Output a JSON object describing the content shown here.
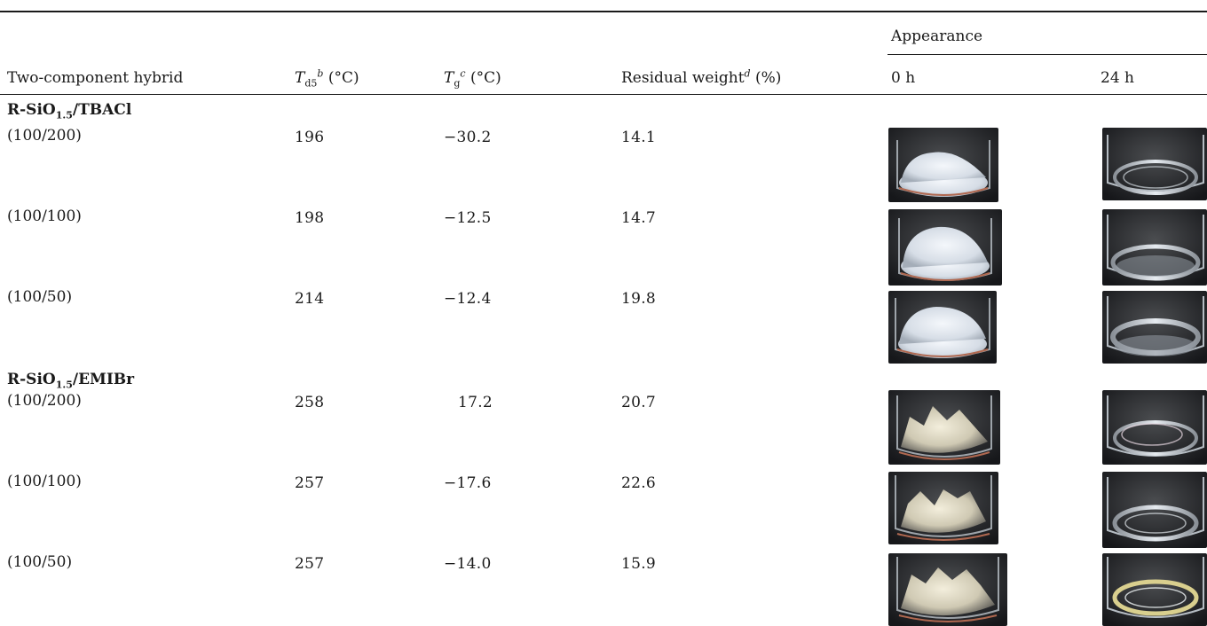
{
  "header": {
    "col_hybrid": "Two-component hybrid",
    "col_td5_sym": "T",
    "col_td5_sub": "d5",
    "col_td5_sup": "b",
    "col_td5_unit": " (°C)",
    "col_tg_sym": "T",
    "col_tg_sub": "g",
    "col_tg_sup": "c",
    "col_tg_unit": " (°C)",
    "col_resid": "Residual weight",
    "col_resid_sup": "d",
    "col_resid_unit": " (%)",
    "appearance": "Appearance",
    "col_0h": "0 h",
    "col_24h": "24 h"
  },
  "groups": [
    {
      "title_pre": "R-SiO",
      "title_sub": "1.5",
      "title_post": "/TBACl",
      "rows": [
        {
          "ratio": "(100/200)",
          "td5": "196",
          "tg": "−30.2",
          "resid": "14.1"
        },
        {
          "ratio": "(100/100)",
          "td5": "198",
          "tg": "−12.5",
          "resid": "14.7"
        },
        {
          "ratio": "(100/50)",
          "td5": "214",
          "tg": "−12.4",
          "resid": "19.8"
        }
      ]
    },
    {
      "title_pre": "R-SiO",
      "title_sub": "1.5",
      "title_post": "/EMIBr",
      "rows": [
        {
          "ratio": "(100/200)",
          "td5": "258",
          "tg": "17.2",
          "resid": "20.7"
        },
        {
          "ratio": "(100/100)",
          "td5": "257",
          "tg": "−17.6",
          "resid": "22.6"
        },
        {
          "ratio": "(100/50)",
          "td5": "257",
          "tg": "−14.0",
          "resid": "15.9"
        }
      ]
    }
  ]
}
